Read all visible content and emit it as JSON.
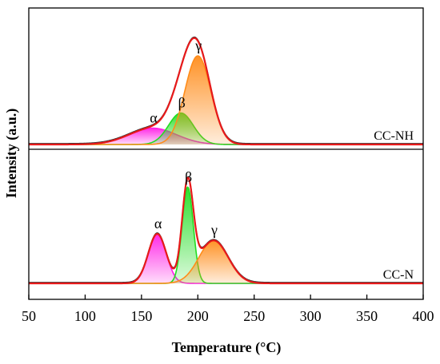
{
  "chart_data": {
    "type": "area",
    "xlabel": "Temperature (°C)",
    "ylabel": "Intensity (a.u.)",
    "xlim": [
      50,
      400
    ],
    "xticks": [
      50,
      100,
      150,
      200,
      250,
      300,
      350,
      400
    ],
    "xtick_labels": [
      "50",
      "100",
      "150",
      "200",
      "250",
      "300",
      "350",
      "400"
    ],
    "grid": false,
    "panels": [
      {
        "label": "CC-NH",
        "peaks": [
          {
            "name": "α",
            "center": 160,
            "height": 0.14,
            "width": 21,
            "color": "#ff1fe6"
          },
          {
            "name": "β",
            "center": 185,
            "height": 0.27,
            "width": 11,
            "color": "#22dd22"
          },
          {
            "name": "γ",
            "center": 200,
            "height": 0.76,
            "width": 11.5,
            "color": "#ff8c1a"
          }
        ],
        "fit_color": "#e8191a",
        "measured_color": "#333333"
      },
      {
        "label": "CC-N",
        "peaks": [
          {
            "name": "α",
            "center": 164,
            "height": 0.38,
            "width": 8,
            "color": "#ff1fe6"
          },
          {
            "name": "β",
            "center": 191,
            "height": 0.74,
            "width": 5,
            "color": "#22dd22"
          },
          {
            "name": "γ",
            "center": 214,
            "height": 0.33,
            "width": 13,
            "color": "#ff8c1a"
          }
        ],
        "fit_color": "#e8191a",
        "measured_color": "#333333"
      }
    ]
  }
}
